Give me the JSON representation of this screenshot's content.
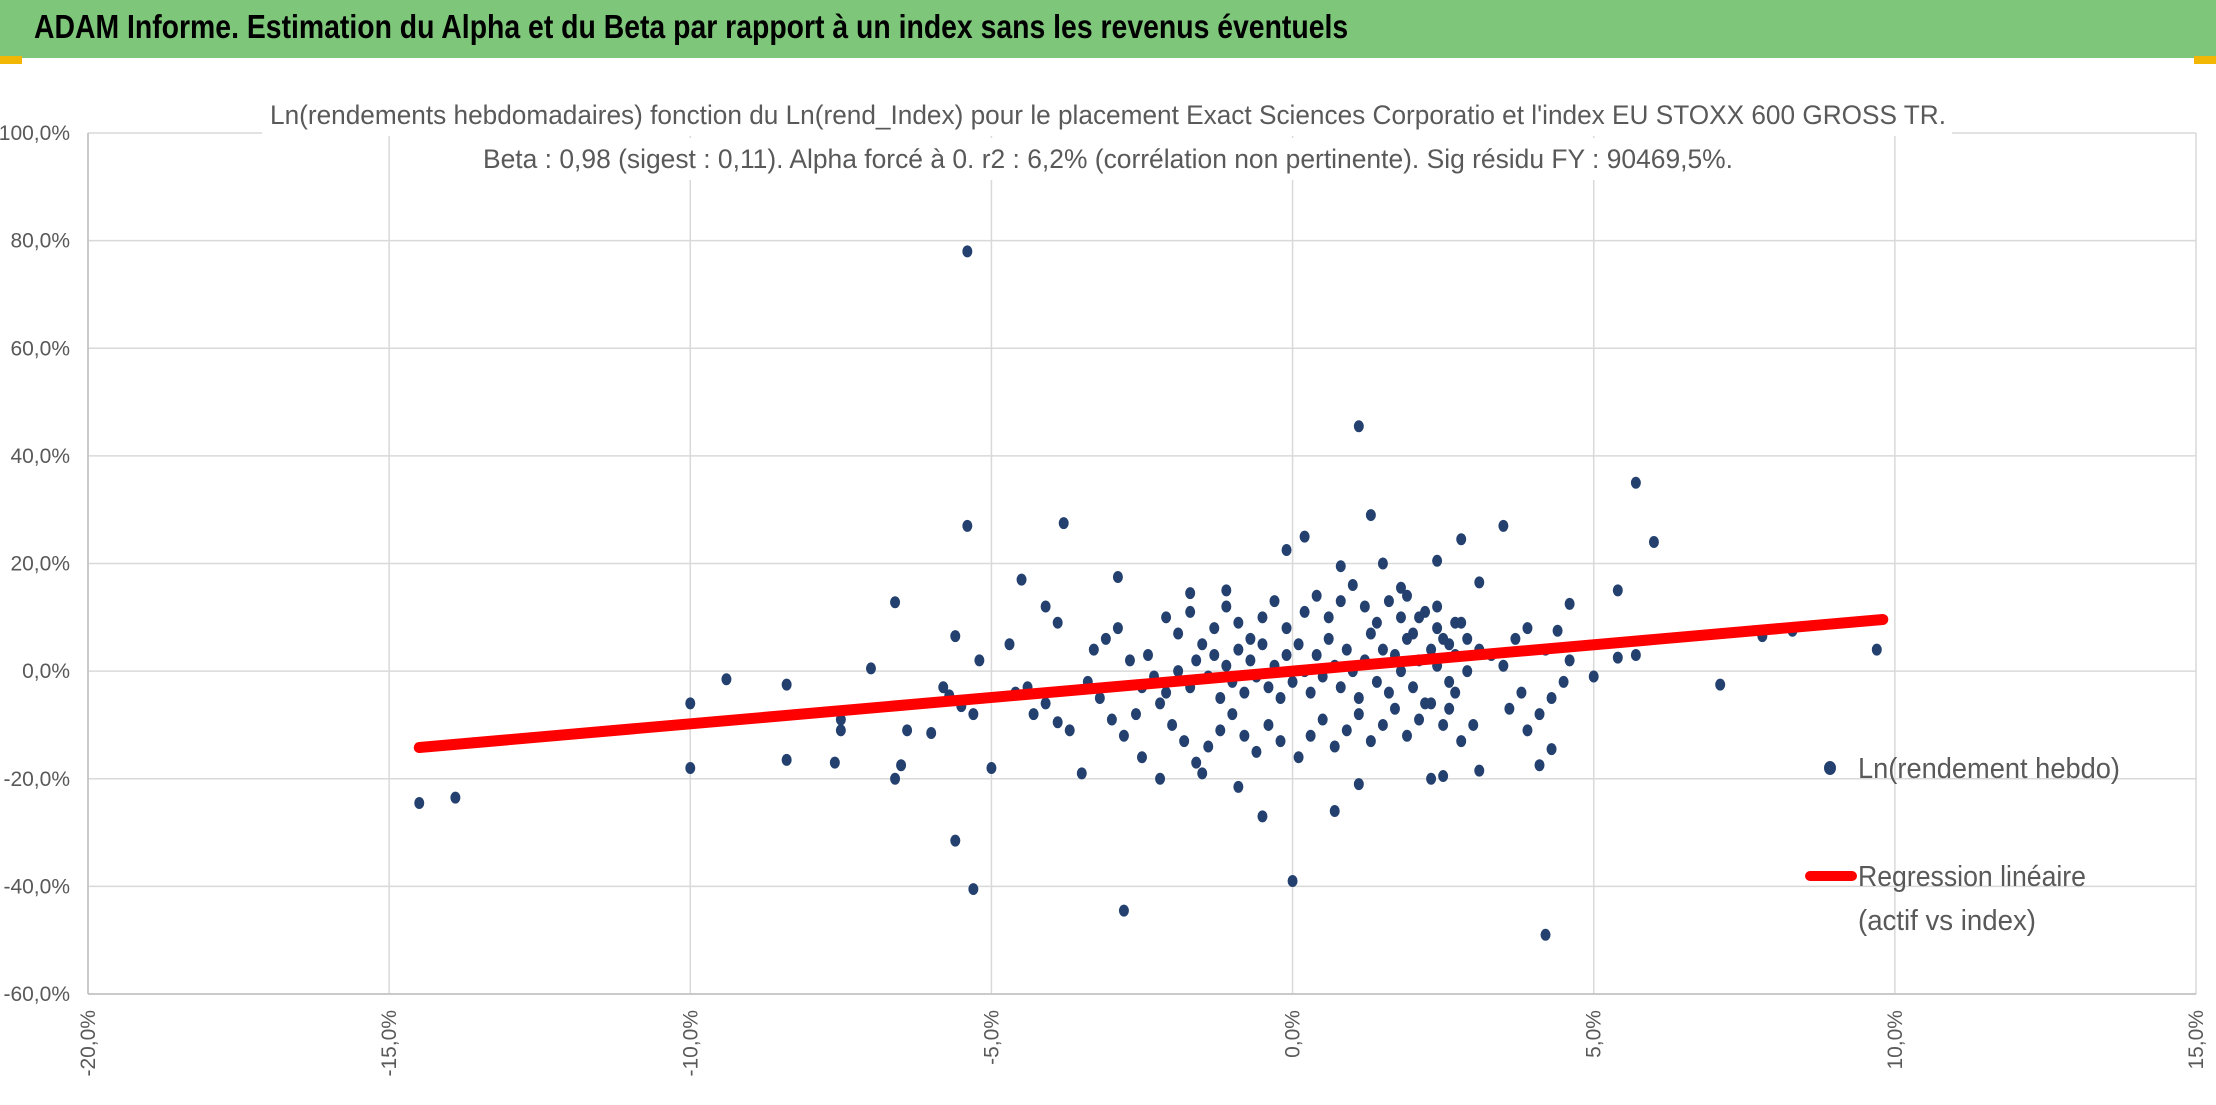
{
  "page": {
    "banner_title": "ADAM Informe. Estimation du Alpha et du Beta par rapport à un index sans les revenus éventuels",
    "banner_color": "#7dc67a",
    "accent_color": "#f2b705"
  },
  "chart_data": {
    "type": "scatter",
    "title": "Ln(rendements hebdomadaires) fonction du Ln(rend_Index) pour le placement Exact Sciences Corporatio et l'index EU STOXX 600 GROSS TR.",
    "subtitle": "Beta : 0,98 (sigest : 0,11). Alpha forcé à 0. r2 : 6,2% (corrélation non pertinente). Sig résidu FY : 90469,5%.",
    "xlabel": "",
    "ylabel": "",
    "xlim": [
      -0.2,
      0.15
    ],
    "ylim": [
      -0.6,
      1.0
    ],
    "x_ticks": [
      -0.2,
      -0.15,
      -0.1,
      -0.05,
      0.0,
      0.05,
      0.1,
      0.15
    ],
    "x_tick_labels": [
      "-20,0%",
      "-15,0%",
      "-10,0%",
      "-5,0%",
      "0,0%",
      "5,0%",
      "10,0%",
      "15,0%"
    ],
    "y_ticks": [
      1.0,
      0.8,
      0.6,
      0.4,
      0.2,
      0.0,
      -0.2,
      -0.4,
      -0.6
    ],
    "y_tick_labels": [
      "100,0%",
      "80,0%",
      "60,0%",
      "40,0%",
      "20,0%",
      "0,0%",
      "-20,0%",
      "-40,0%",
      "-60,0%"
    ],
    "grid": true,
    "legend_position": "right",
    "series": [
      {
        "name": "Ln(rendement hebdo)",
        "kind": "scatter",
        "color": "#23406f",
        "points": [
          [
            -0.054,
            0.78
          ],
          [
            0.011,
            0.455
          ],
          [
            0.057,
            0.35
          ],
          [
            0.013,
            0.29
          ],
          [
            0.06,
            0.24
          ],
          [
            -0.054,
            0.27
          ],
          [
            -0.038,
            0.275
          ],
          [
            0.002,
            0.25
          ],
          [
            0.035,
            0.27
          ],
          [
            0.028,
            0.245
          ],
          [
            -0.029,
            0.175
          ],
          [
            -0.045,
            0.17
          ],
          [
            0.054,
            0.15
          ],
          [
            0.046,
            0.125
          ],
          [
            -0.066,
            0.128
          ],
          [
            -0.056,
            0.065
          ],
          [
            -0.07,
            0.005
          ],
          [
            -0.094,
            -0.015
          ],
          [
            -0.084,
            -0.025
          ],
          [
            -0.1,
            -0.06
          ],
          [
            -0.075,
            -0.09
          ],
          [
            -0.075,
            -0.11
          ],
          [
            -0.064,
            -0.11
          ],
          [
            -0.06,
            -0.115
          ],
          [
            -0.076,
            -0.17
          ],
          [
            -0.084,
            -0.165
          ],
          [
            -0.1,
            -0.18
          ],
          [
            -0.065,
            -0.175
          ],
          [
            -0.066,
            -0.2
          ],
          [
            -0.05,
            -0.18
          ],
          [
            -0.056,
            -0.315
          ],
          [
            -0.053,
            -0.405
          ],
          [
            -0.028,
            -0.445
          ],
          [
            0.0,
            -0.39
          ],
          [
            0.042,
            -0.49
          ],
          [
            -0.005,
            -0.27
          ],
          [
            0.007,
            -0.26
          ],
          [
            0.011,
            -0.21
          ],
          [
            0.023,
            -0.2
          ],
          [
            0.025,
            -0.195
          ],
          [
            0.041,
            -0.175
          ],
          [
            0.043,
            -0.145
          ],
          [
            0.071,
            -0.025
          ],
          [
            0.078,
            0.065
          ],
          [
            0.083,
            0.075
          ],
          [
            0.097,
            0.04
          ],
          [
            0.057,
            0.03
          ],
          [
            0.054,
            0.025
          ],
          [
            0.05,
            -0.01
          ],
          [
            -0.145,
            -0.245
          ],
          [
            -0.139,
            -0.235
          ],
          [
            0.031,
            -0.185
          ],
          [
            -0.009,
            -0.215
          ],
          [
            -0.022,
            -0.2
          ],
          [
            -0.015,
            -0.19
          ],
          [
            -0.035,
            -0.19
          ],
          [
            -0.025,
            -0.16
          ],
          [
            0.015,
            0.2
          ],
          [
            0.008,
            0.195
          ],
          [
            -0.001,
            0.225
          ],
          [
            0.024,
            0.205
          ],
          [
            0.031,
            0.165
          ],
          [
            0.018,
            0.155
          ],
          [
            -0.011,
            0.15
          ],
          [
            -0.017,
            0.145
          ],
          [
            0.039,
            0.08
          ],
          [
            0.044,
            0.075
          ],
          [
            0.037,
            0.06
          ],
          [
            -0.041,
            0.12
          ],
          [
            -0.039,
            0.09
          ],
          [
            -0.047,
            0.05
          ],
          [
            -0.052,
            0.02
          ],
          [
            -0.058,
            -0.03
          ],
          [
            -0.057,
            -0.045
          ],
          [
            -0.055,
            -0.065
          ],
          [
            -0.053,
            -0.08
          ],
          [
            -0.046,
            -0.04
          ],
          [
            -0.044,
            -0.03
          ],
          [
            -0.041,
            -0.06
          ],
          [
            -0.043,
            -0.08
          ],
          [
            -0.039,
            -0.095
          ],
          [
            -0.037,
            -0.11
          ],
          [
            0.042,
            0.04
          ],
          [
            0.046,
            0.02
          ],
          [
            0.045,
            -0.02
          ],
          [
            0.043,
            -0.05
          ],
          [
            0.041,
            -0.08
          ],
          [
            0.039,
            -0.11
          ],
          [
            0.036,
            -0.07
          ],
          [
            0.038,
            -0.04
          ],
          [
            0.035,
            0.01
          ],
          [
            0.033,
            0.03
          ],
          [
            0.03,
            -0.1
          ],
          [
            0.028,
            -0.13
          ],
          [
            0.026,
            -0.07
          ],
          [
            0.029,
            0.06
          ],
          [
            0.027,
            0.09
          ],
          [
            0.024,
            0.12
          ],
          [
            0.021,
            0.1
          ],
          [
            0.019,
            0.14
          ],
          [
            -0.034,
            -0.02
          ],
          [
            -0.032,
            -0.05
          ],
          [
            -0.03,
            -0.09
          ],
          [
            -0.028,
            -0.12
          ],
          [
            -0.026,
            -0.08
          ],
          [
            -0.033,
            0.04
          ],
          [
            -0.031,
            0.06
          ],
          [
            -0.029,
            0.08
          ],
          [
            -0.027,
            0.02
          ],
          [
            -0.025,
            -0.03
          ],
          [
            -0.022,
            -0.06
          ],
          [
            -0.02,
            -0.1
          ],
          [
            -0.018,
            -0.13
          ],
          [
            -0.016,
            -0.17
          ],
          [
            -0.014,
            -0.14
          ],
          [
            -0.012,
            -0.11
          ],
          [
            -0.01,
            -0.08
          ],
          [
            -0.008,
            -0.12
          ],
          [
            -0.006,
            -0.15
          ],
          [
            -0.004,
            -0.1
          ],
          [
            -0.002,
            -0.13
          ],
          [
            0.001,
            -0.16
          ],
          [
            0.003,
            -0.12
          ],
          [
            0.005,
            -0.09
          ],
          [
            0.007,
            -0.14
          ],
          [
            0.009,
            -0.11
          ],
          [
            0.011,
            -0.08
          ],
          [
            0.013,
            -0.13
          ],
          [
            0.015,
            -0.1
          ],
          [
            0.017,
            -0.07
          ],
          [
            0.019,
            -0.12
          ],
          [
            0.021,
            -0.09
          ],
          [
            0.023,
            -0.06
          ],
          [
            0.025,
            -0.1
          ],
          [
            0.027,
            -0.04
          ],
          [
            -0.021,
            0.1
          ],
          [
            -0.019,
            0.07
          ],
          [
            -0.017,
            0.11
          ],
          [
            -0.015,
            0.05
          ],
          [
            -0.013,
            0.08
          ],
          [
            -0.011,
            0.12
          ],
          [
            -0.009,
            0.09
          ],
          [
            -0.007,
            0.06
          ],
          [
            -0.005,
            0.1
          ],
          [
            -0.003,
            0.13
          ],
          [
            -0.001,
            0.08
          ],
          [
            0.002,
            0.11
          ],
          [
            0.004,
            0.14
          ],
          [
            0.006,
            0.1
          ],
          [
            0.008,
            0.13
          ],
          [
            0.01,
            0.16
          ],
          [
            0.012,
            0.12
          ],
          [
            0.014,
            0.09
          ],
          [
            0.016,
            0.13
          ],
          [
            0.018,
            0.1
          ],
          [
            0.02,
            0.07
          ],
          [
            0.022,
            0.11
          ],
          [
            0.024,
            0.08
          ],
          [
            0.026,
            0.05
          ],
          [
            0.028,
            0.09
          ],
          [
            -0.024,
            0.03
          ],
          [
            -0.023,
            -0.01
          ],
          [
            -0.021,
            -0.04
          ],
          [
            -0.019,
            0.0
          ],
          [
            -0.017,
            -0.03
          ],
          [
            -0.016,
            0.02
          ],
          [
            -0.014,
            -0.01
          ],
          [
            -0.013,
            0.03
          ],
          [
            -0.012,
            -0.05
          ],
          [
            -0.011,
            0.01
          ],
          [
            -0.01,
            -0.02
          ],
          [
            -0.009,
            0.04
          ],
          [
            -0.008,
            -0.04
          ],
          [
            -0.007,
            0.02
          ],
          [
            -0.006,
            -0.01
          ],
          [
            -0.005,
            0.05
          ],
          [
            -0.004,
            -0.03
          ],
          [
            -0.003,
            0.01
          ],
          [
            -0.002,
            -0.05
          ],
          [
            -0.001,
            0.03
          ],
          [
            0.0,
            -0.02
          ],
          [
            0.001,
            0.05
          ],
          [
            0.002,
            0.0
          ],
          [
            0.003,
            -0.04
          ],
          [
            0.004,
            0.03
          ],
          [
            0.005,
            -0.01
          ],
          [
            0.006,
            0.06
          ],
          [
            0.007,
            0.01
          ],
          [
            0.008,
            -0.03
          ],
          [
            0.009,
            0.04
          ],
          [
            0.01,
            0.0
          ],
          [
            0.011,
            -0.05
          ],
          [
            0.012,
            0.02
          ],
          [
            0.013,
            0.07
          ],
          [
            0.014,
            -0.02
          ],
          [
            0.015,
            0.04
          ],
          [
            0.016,
            -0.04
          ],
          [
            0.017,
            0.03
          ],
          [
            0.018,
            0.0
          ],
          [
            0.019,
            0.06
          ],
          [
            0.02,
            -0.03
          ],
          [
            0.021,
            0.02
          ],
          [
            0.022,
            -0.06
          ],
          [
            0.023,
            0.04
          ],
          [
            0.024,
            0.01
          ],
          [
            0.025,
            0.06
          ],
          [
            0.026,
            -0.02
          ],
          [
            0.027,
            0.03
          ],
          [
            0.029,
            0.0
          ],
          [
            0.031,
            0.04
          ]
        ]
      },
      {
        "name": "Regression linéaire (actif vs index)",
        "kind": "line",
        "color": "#ff0000",
        "points": [
          [
            -0.145,
            -0.142
          ],
          [
            0.0,
            0.0
          ],
          [
            0.098,
            0.096
          ]
        ]
      }
    ],
    "legend": {
      "entry_1": "Ln(rendement hebdo)",
      "entry_2_line1": "Regression linéaire",
      "entry_2_line2": "(actif vs index)"
    }
  }
}
